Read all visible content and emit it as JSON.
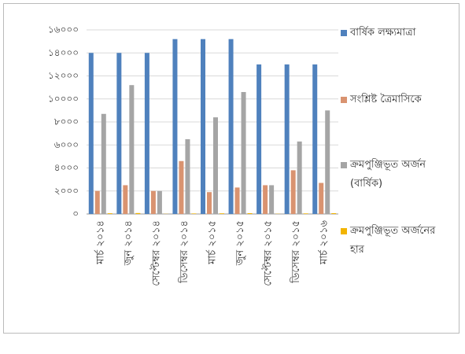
{
  "chart_data": {
    "type": "bar",
    "categories": [
      "মার্চ ২০১৪",
      "জুন ২০১৪",
      "সেপ্টেম্বর ২০১৪",
      "ডিসেম্বর ২০১৪",
      "মার্চ ২০১৫",
      "জুন ২০১৫",
      "সেপ্টেম্বর ২০১৫",
      "ডিসেম্বর ২০১৫",
      "মার্চ ২০১৬"
    ],
    "series": [
      {
        "name": "বার্ষিক লক্ষ্যমাত্রা",
        "color": "#4f81bd",
        "values": [
          14000,
          14000,
          14000,
          15200,
          15200,
          15200,
          13000,
          13000,
          13000
        ]
      },
      {
        "name": "সংশ্লিষ্ট ত্রৈমাসিকে",
        "color": "#d99370",
        "values": [
          2000,
          2500,
          2000,
          4600,
          1900,
          2300,
          2500,
          3800,
          2700
        ]
      },
      {
        "name": "ক্রমপুঞ্জিভূত অর্জন (বার্ষিক)",
        "color": "#a5a5a5",
        "values": [
          8700,
          11200,
          2000,
          6500,
          8400,
          10600,
          2500,
          6300,
          9000
        ]
      },
      {
        "name": "ক্রমপুঞ্জিভূত অর্জনের হার",
        "color": "#f2b400",
        "values": [
          62,
          80,
          14,
          43,
          55,
          70,
          19,
          48,
          69
        ]
      }
    ],
    "ylim": [
      0,
      16000
    ],
    "yticks": [
      {
        "value": 0,
        "label": "০"
      },
      {
        "value": 2000,
        "label": "২০০০"
      },
      {
        "value": 4000,
        "label": "৪০০০"
      },
      {
        "value": 6000,
        "label": "৬০০০"
      },
      {
        "value": 8000,
        "label": "৮০০০"
      },
      {
        "value": 10000,
        "label": "১০০০০"
      },
      {
        "value": 12000,
        "label": "১২০০০"
      },
      {
        "value": 14000,
        "label": "১৪০০০"
      },
      {
        "value": 16000,
        "label": "১৬০০০"
      }
    ],
    "grid": true,
    "legend": "right"
  }
}
